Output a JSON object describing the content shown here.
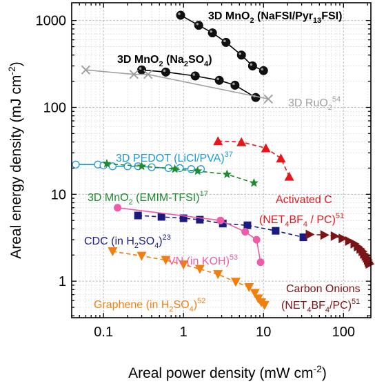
{
  "chart_data": {
    "type": "scatter",
    "xlabel": "Areal power density (mW cm$-2$)",
    "ylabel": "Areal energy density (mJ cm$-2$)",
    "xscale": "log",
    "yscale": "log",
    "xlim": [
      0.04,
      220
    ],
    "ylim": [
      0.38,
      1600
    ],
    "x_ticks": [
      "0.1",
      "1",
      "10",
      "100"
    ],
    "y_ticks": [
      "1",
      "10",
      "100",
      "1000"
    ],
    "grid": true,
    "series": [
      {
        "name": "3D MnO$2$ (NaFSI/Pyr$13$FSI)",
        "color": "#000000",
        "marker": "ball",
        "line": "solid",
        "x": [
          0.92,
          1.55,
          2.3,
          3.4,
          5.3,
          7.3,
          10.0
        ],
        "y": [
          1150,
          880,
          720,
          560,
          400,
          300,
          265
        ]
      },
      {
        "name": "3D MnO$2$ (Na$2$SO$4$)",
        "color": "#000000",
        "marker": "ball",
        "line": "solid",
        "x": [
          0.3,
          0.6,
          1.4,
          2.8,
          4.4,
          8.0
        ],
        "y": [
          270,
          255,
          230,
          205,
          180,
          130
        ]
      },
      {
        "name": "3D RuO$2$$54$",
        "color": "#a0a0a0",
        "marker": "x",
        "line": "solid",
        "x": [
          0.06,
          0.24,
          0.36,
          11.5
        ],
        "y": [
          270,
          240,
          240,
          125
        ]
      },
      {
        "name": "3D PEDOT (LiCl/PVA)$37$",
        "color": "#1a9ad6",
        "marker": "open-circle",
        "line": "solid",
        "x": [
          0.045,
          0.085,
          0.1,
          0.13,
          0.2,
          0.27,
          0.4,
          0.65,
          0.9,
          1.25,
          1.65
        ],
        "y": [
          22,
          22,
          21.5,
          21,
          21,
          21,
          20.5,
          20,
          20,
          19.5,
          19.5
        ]
      },
      {
        "name": "3D MnO$2$ (EMIM-TFSI)$17$",
        "color": "#1f8a2e",
        "marker": "star",
        "line": "dashed",
        "x": [
          0.11,
          0.3,
          0.78,
          1.5,
          3.5,
          7.6
        ],
        "y": [
          22.5,
          21,
          19.5,
          18.5,
          17,
          13.5
        ]
      },
      {
        "name": "Activated C (NET$4$BF$4$ / PC)$51$",
        "color": "#e8161b",
        "marker": "triangle-up",
        "line": "dashed",
        "x": [
          2.7,
          5.3,
          10.7,
          16.5,
          21.0
        ],
        "y": [
          41,
          40,
          34,
          26,
          16
        ]
      },
      {
        "name": "CDC (in H$2$SO$4$)$23$",
        "color": "#1a1a80",
        "marker": "square",
        "line": "dashed",
        "x": [
          0.27,
          0.53,
          1.0,
          1.6,
          3.1,
          6.3,
          14.2,
          31.5
        ],
        "y": [
          5.7,
          5.5,
          5.3,
          5.1,
          4.6,
          4.4,
          3.8,
          3.2
        ]
      },
      {
        "name": "VN (in KOH)$53$",
        "color": "#ee5ba8",
        "marker": "filled-circle",
        "line": "solid",
        "x": [
          0.15,
          2.9,
          5.9,
          8.2,
          9.2
        ],
        "y": [
          7.0,
          5.0,
          3.7,
          3.0,
          1.65
        ]
      },
      {
        "name": "Graphene (in H$2$SO$4$)$52$",
        "color": "#f07f0f",
        "marker": "triangle-down",
        "line": "dashed",
        "x": [
          0.13,
          0.3,
          0.6,
          1.0,
          1.6,
          2.7,
          4.5,
          6.6,
          7.8,
          8.6,
          9.4,
          10.3
        ],
        "y": [
          2.2,
          1.95,
          1.75,
          1.55,
          1.38,
          1.2,
          0.98,
          0.85,
          0.73,
          0.63,
          0.57,
          0.53
        ]
      },
      {
        "name": "Carbon Onions (NET$4$BF$4$/PC)$51$",
        "color": "#7b1416",
        "marker": "triangle-right",
        "line": "dashed",
        "x": [
          38,
          58,
          78,
          98,
          118,
          138,
          152,
          164,
          174,
          182,
          190,
          197,
          203,
          208,
          213
        ],
        "y": [
          3.45,
          3.4,
          3.3,
          3.1,
          2.9,
          2.7,
          2.5,
          2.35,
          2.2,
          2.05,
          1.95,
          1.85,
          1.75,
          1.65,
          1.58
        ]
      }
    ],
    "annotations": [
      {
        "parts": [
          [
            "3D MnO",
            ""
          ],
          [
            "2",
            "sub"
          ],
          [
            " (NaFSI/Pyr",
            ""
          ],
          [
            "13",
            "sub"
          ],
          [
            "FSI)",
            ""
          ]
        ],
        "color": "#000000",
        "bold": true
      },
      {
        "parts": [
          [
            "3D MnO",
            ""
          ],
          [
            "2",
            "sub"
          ],
          [
            " (Na",
            ""
          ],
          [
            "2",
            "sub"
          ],
          [
            "SO",
            ""
          ],
          [
            "4",
            "sub"
          ],
          [
            ")",
            ""
          ]
        ],
        "color": "#000000",
        "bold": true
      },
      {
        "parts": [
          [
            "3D RuO",
            ""
          ],
          [
            "2",
            "sub"
          ],
          [
            "54",
            "sup"
          ]
        ],
        "color": "#a0a0a0",
        "bold": false
      },
      {
        "parts": [
          [
            "3D PEDOT (LiCl/PVA)",
            ""
          ],
          [
            "37",
            "sup"
          ]
        ],
        "color": "#1a9ad6",
        "bold": false
      },
      {
        "parts": [
          [
            "3D MnO",
            ""
          ],
          [
            "2",
            "sub"
          ],
          [
            " (EMIM-TFSI)",
            ""
          ],
          [
            "17",
            "sup"
          ]
        ],
        "color": "#1f8a2e",
        "bold": false
      },
      {
        "parts": [
          [
            "Activated C",
            ""
          ]
        ],
        "color": "#e8161b",
        "bold": false
      },
      {
        "parts": [
          [
            "(NET",
            ""
          ],
          [
            "4",
            "sub"
          ],
          [
            "BF",
            ""
          ],
          [
            "4",
            "sub"
          ],
          [
            " / PC)",
            ""
          ],
          [
            "51",
            "sup"
          ]
        ],
        "color": "#e8161b",
        "bold": false
      },
      {
        "parts": [
          [
            "CDC (in H",
            ""
          ],
          [
            "2",
            "sub"
          ],
          [
            "SO",
            ""
          ],
          [
            "4",
            "sub"
          ],
          [
            ")",
            ""
          ],
          [
            "23",
            "sup"
          ]
        ],
        "color": "#1a1a80",
        "bold": false
      },
      {
        "parts": [
          [
            "VN (in KOH)",
            ""
          ],
          [
            "53",
            "sup"
          ]
        ],
        "color": "#ee5ba8",
        "bold": false
      },
      {
        "parts": [
          [
            "Carbon Onions",
            ""
          ]
        ],
        "color": "#7b1416",
        "bold": false
      },
      {
        "parts": [
          [
            "(NET",
            ""
          ],
          [
            "4",
            "sub"
          ],
          [
            "BF",
            ""
          ],
          [
            "4",
            "sub"
          ],
          [
            "/PC)",
            ""
          ],
          [
            "51",
            "sup"
          ]
        ],
        "color": "#7b1416",
        "bold": false
      },
      {
        "parts": [
          [
            "Graphene (in H",
            ""
          ],
          [
            "2",
            "sub"
          ],
          [
            "SO",
            ""
          ],
          [
            "4",
            "sub"
          ],
          [
            ")",
            ""
          ],
          [
            "52",
            "sup"
          ]
        ],
        "color": "#f07f0f",
        "bold": false
      }
    ]
  }
}
